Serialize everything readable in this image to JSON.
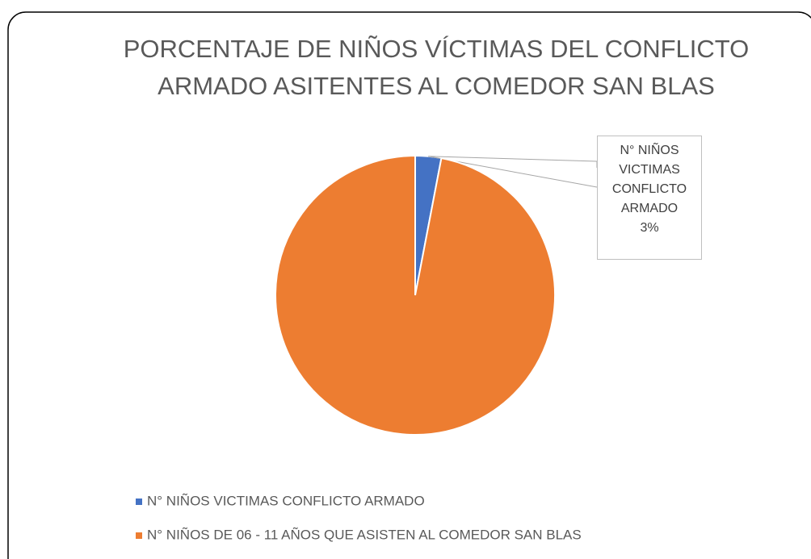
{
  "chart_data": {
    "type": "pie",
    "title": "PORCENTAJE DE NIÑOS VÍCTIMAS DEL CONFLICTO ARMADO ASITENTES AL COMEDOR SAN BLAS",
    "categories": [
      "N° NIÑOS VICTIMAS CONFLICTO ARMADO",
      "N° NIÑOS DE 06 - 11 AÑOS QUE ASISTEN AL COMEDOR SAN BLAS"
    ],
    "values": [
      3,
      97
    ],
    "value_labels": [
      "3%",
      null
    ],
    "colors": [
      "#4472c4",
      "#ed7d31"
    ],
    "legend": "bottom"
  }
}
